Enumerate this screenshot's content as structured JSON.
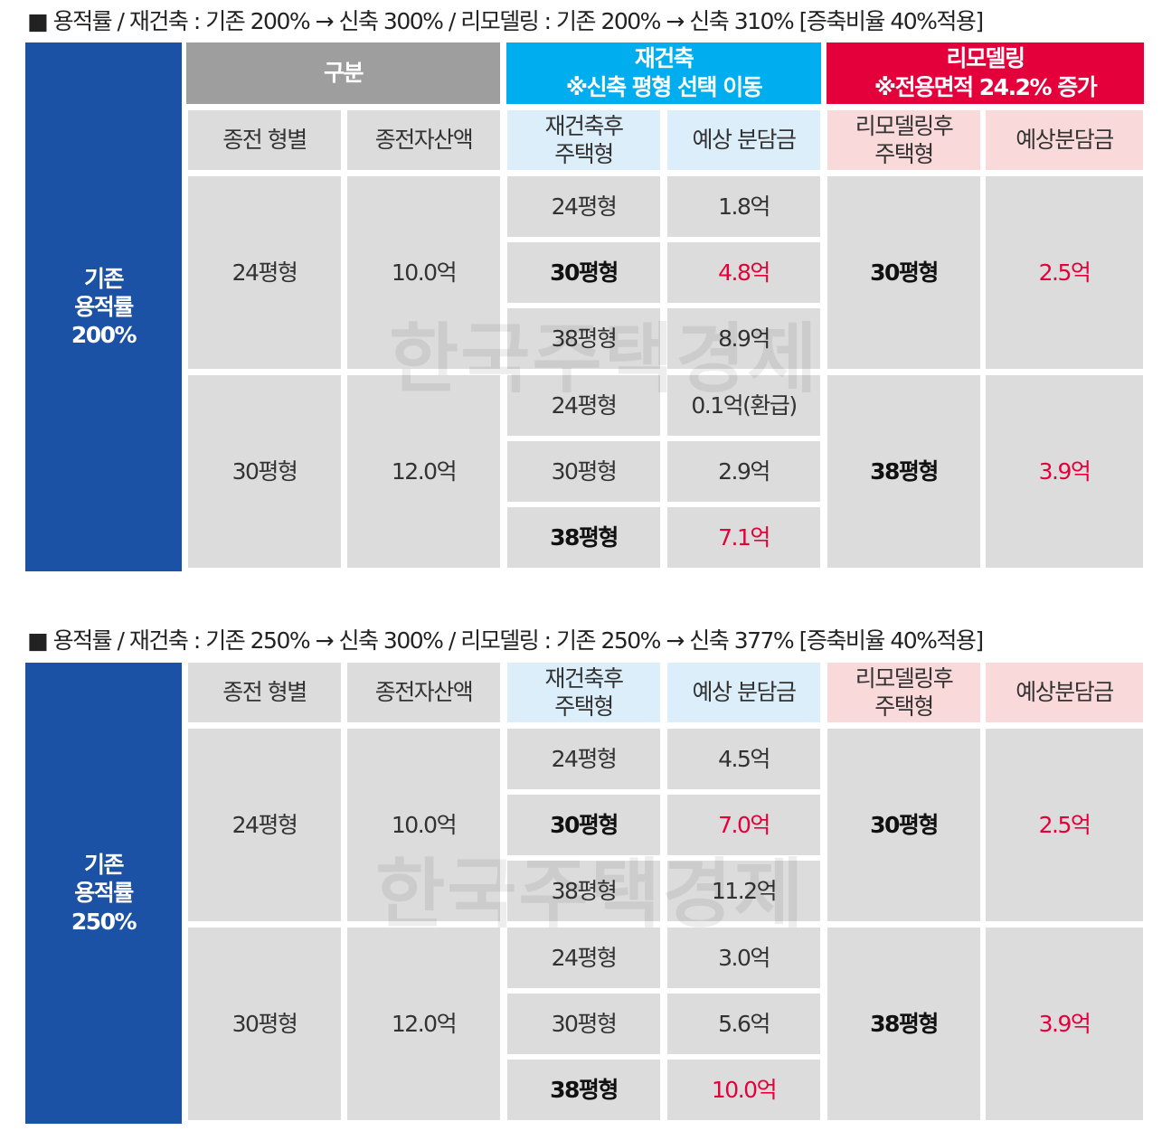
{
  "sections": [
    {
      "title": "■ 용적률 / 재건축 : 기존 200% → 신축 300% / 리모델링 : 기존 200% → 신축 310% [증축비율 40%적용]",
      "side_label": "기존\n용적률\n200%",
      "header_groups": [
        {
          "label": "구분"
        },
        {
          "label": "재건축",
          "note": "※신축 평형 선택 이동"
        },
        {
          "label": "리모델링",
          "note": "※전용면적 24.2% 증가"
        }
      ],
      "columns": [
        "종전 형별",
        "종전자산액",
        "재건축후\n주택형",
        "예상 분담금",
        "리모델링후\n주택형",
        "예상분담금"
      ],
      "groups": [
        {
          "type": "24평형",
          "asset": "10.0억",
          "rebuild": [
            [
              "24평형",
              "1.8억"
            ],
            [
              "30평형",
              "4.8억"
            ],
            [
              "38평형",
              "8.9억"
            ]
          ],
          "remodel": [
            "30평형",
            "2.5억"
          ]
        },
        {
          "type": "30평형",
          "asset": "12.0억",
          "rebuild": [
            [
              "24평형",
              "0.1억(환급)"
            ],
            [
              "30평형",
              "2.9억"
            ],
            [
              "38평형",
              "7.1억"
            ]
          ],
          "remodel": [
            "38평형",
            "3.9억"
          ]
        }
      ],
      "watermark": "한국주택경제"
    },
    {
      "title": "■ 용적률 / 재건축 : 기존 250% → 신축 300% / 리모델링 : 기존 250% → 신축 377% [증축비율 40%적용]",
      "side_label": "기존\n용적률\n250%",
      "columns": [
        "종전 형별",
        "종전자산액",
        "재건축후\n주택형",
        "예상 분담금",
        "리모델링후\n주택형",
        "예상분담금"
      ],
      "groups": [
        {
          "type": "24평형",
          "asset": "10.0억",
          "rebuild": [
            [
              "24평형",
              "4.5억"
            ],
            [
              "30평형",
              "7.0억"
            ],
            [
              "38평형",
              "11.2억"
            ]
          ],
          "remodel": [
            "30평형",
            "2.5억"
          ]
        },
        {
          "type": "30평형",
          "asset": "12.0억",
          "rebuild": [
            [
              "24평형",
              "3.0억"
            ],
            [
              "30평형",
              "5.6억"
            ],
            [
              "38평형",
              "10.0억"
            ]
          ],
          "remodel": [
            "38평형",
            "3.9억"
          ]
        }
      ],
      "watermark": "한국주택경제"
    }
  ]
}
